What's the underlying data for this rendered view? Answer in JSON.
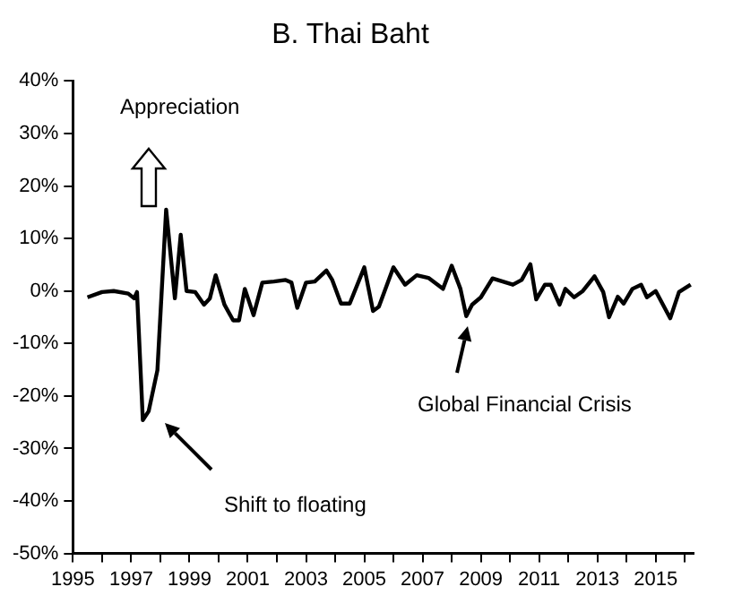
{
  "chart_data": {
    "type": "line",
    "title": "B. Thai Baht",
    "color": "#000000",
    "marker": "none",
    "grid": false,
    "legend": false,
    "x": [
      1995.5,
      1996.0,
      1996.4,
      1996.9,
      1997.1,
      1997.2,
      1997.4,
      1997.6,
      1997.9,
      1998.2,
      1998.5,
      1998.7,
      1998.9,
      1999.2,
      1999.5,
      1999.7,
      1999.9,
      2000.2,
      2000.5,
      2000.7,
      2000.9,
      2001.2,
      2001.5,
      2001.9,
      2002.3,
      2002.5,
      2002.7,
      2003.0,
      2003.3,
      2003.7,
      2003.9,
      2004.2,
      2004.5,
      2005.0,
      2005.3,
      2005.5,
      2006.0,
      2006.4,
      2006.8,
      2007.2,
      2007.7,
      2008.0,
      2008.3,
      2008.5,
      2008.7,
      2009.0,
      2009.4,
      2009.7,
      2010.1,
      2010.4,
      2010.7,
      2010.9,
      2011.2,
      2011.4,
      2011.7,
      2011.9,
      2012.2,
      2012.5,
      2012.9,
      2013.2,
      2013.4,
      2013.7,
      2013.9,
      2014.2,
      2014.5,
      2014.7,
      2015.0,
      2015.5,
      2015.8,
      2016.2
    ],
    "values": [
      -1.2,
      -0.2,
      0,
      -0.5,
      -1.4,
      -0.2,
      -24.6,
      -22.9,
      -15.1,
      15.5,
      -1.4,
      10.7,
      0,
      -0.2,
      -2.6,
      -1.4,
      3,
      -2.6,
      -5.6,
      -5.6,
      0.4,
      -4.6,
      1.6,
      1.8,
      2.1,
      1.6,
      -3.2,
      1.6,
      1.8,
      3.9,
      2.1,
      -2.4,
      -2.4,
      4.5,
      -3.8,
      -3,
      4.5,
      1.2,
      3,
      2.5,
      0.4,
      4.8,
      0.4,
      -4.8,
      -2.6,
      -1.2,
      2.4,
      1.9,
      1.2,
      2.1,
      5.1,
      -1.6,
      1.2,
      1.2,
      -2.6,
      0.4,
      -1.2,
      0,
      2.8,
      -0.2,
      -5,
      -1.1,
      -2.4,
      0.4,
      1.2,
      -1.2,
      0,
      -5.2,
      -0.2,
      1.2
    ],
    "xlim": [
      1995,
      2016.3
    ],
    "xticks": [
      1995,
      {
        "value": 1996,
        "label": null
      },
      1997,
      {
        "value": 1998,
        "label": null
      },
      1999,
      {
        "value": 2000,
        "label": null
      },
      2001,
      {
        "value": 2002,
        "label": null
      },
      2003,
      {
        "value": 2004,
        "label": null
      },
      2005,
      {
        "value": 2006,
        "label": null
      },
      2007,
      {
        "value": 2008,
        "label": null
      },
      2009,
      {
        "value": 2010,
        "label": null
      },
      2011,
      {
        "value": 2012,
        "label": null
      },
      2013,
      {
        "value": 2014,
        "label": null
      },
      2015,
      {
        "value": 2016,
        "label": null
      }
    ],
    "ylim": [
      -50,
      40
    ],
    "yticks": [
      {
        "value": -50,
        "label": "-50%"
      },
      {
        "value": -40,
        "label": "-40%"
      },
      {
        "value": -30,
        "label": "-30%"
      },
      {
        "value": -20,
        "label": "-20%"
      },
      {
        "value": -10,
        "label": "-10%"
      },
      {
        "value": 0,
        "label": "0%"
      },
      {
        "value": 10,
        "label": "10%"
      },
      {
        "value": 20,
        "label": "20%"
      },
      {
        "value": 30,
        "label": "30%"
      },
      {
        "value": 40,
        "label": "40%"
      }
    ],
    "annotations": [
      "Appreciation",
      "Shift to floating",
      "Global Financial Crisis"
    ]
  }
}
